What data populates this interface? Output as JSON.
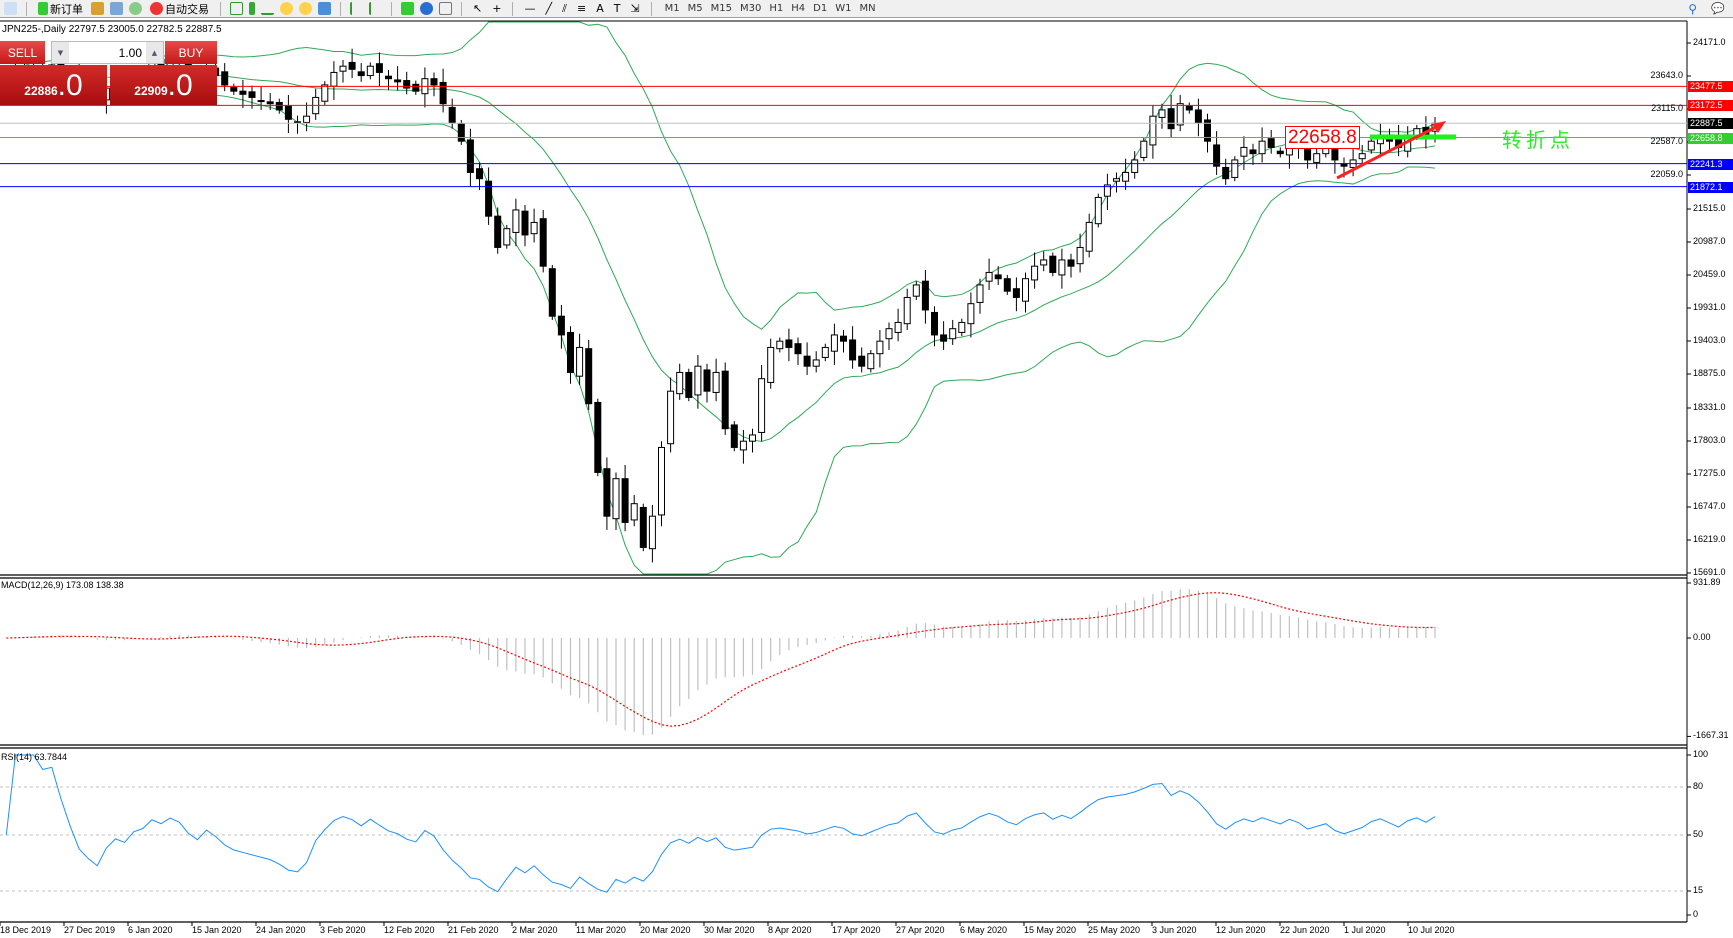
{
  "toolbar": {
    "new_order": "新订单",
    "auto_trading": "自动交易",
    "periods": [
      "M1",
      "M5",
      "M15",
      "M30",
      "H1",
      "H4",
      "D1",
      "W1",
      "MN"
    ]
  },
  "chart": {
    "title": "JPN225-,Daily  22797.5 23005.0 22782.5 22887.5",
    "trade_panel": {
      "sell": "SELL",
      "buy": "BUY",
      "lot": "1.00",
      "sell_small": "22886",
      "sell_big": ".0",
      "buy_small": "22909",
      "buy_big": ".0"
    },
    "price_axis": [
      "24171.0",
      "23643.0",
      "23115.0",
      "22587.0",
      "22059.0",
      "21515.0",
      "20987.0",
      "20459.0",
      "19931.0",
      "19403.0",
      "18875.0",
      "18331.0",
      "17803.0",
      "17275.0",
      "16747.0",
      "16219.0",
      "15691.0"
    ],
    "levels": [
      {
        "price": 23477.5,
        "label": "23477.5",
        "color": "#ff0000"
      },
      {
        "price": 23172.5,
        "label": "23172.5",
        "color": "#ff0000"
      },
      {
        "price": 22887.5,
        "label": "22887.5",
        "color": "#000000",
        "line": "#c0c0c0"
      },
      {
        "price": 22658.8,
        "label": "22658.8",
        "color": "#33cc33",
        "line": "#33cc33"
      },
      {
        "price": 22241.3,
        "label": "22241.3",
        "color": "#0000ff"
      },
      {
        "price": 21872.1,
        "label": "21872.1",
        "color": "#0000ff"
      }
    ],
    "annotation_price": "22658.8",
    "annotation_text": "转折点",
    "closes": [
      23600,
      23700,
      23750,
      23800,
      23780,
      23820,
      23750,
      23650,
      23500,
      23400,
      23300,
      23450,
      23550,
      23500,
      23650,
      23700,
      23850,
      23800,
      23900,
      23850,
      23700,
      23600,
      23750,
      23650,
      23500,
      23400,
      23350,
      23300,
      23250,
      23200,
      23100,
      22950,
      22900,
      23000,
      23300,
      23500,
      23700,
      23800,
      23750,
      23650,
      23800,
      23700,
      23600,
      23550,
      23450,
      23400,
      23600,
      23500,
      23200,
      22900,
      22600,
      22100,
      22000,
      21400,
      20900,
      21200,
      21500,
      21100,
      21300,
      20600,
      19800,
      19500,
      18900,
      19300,
      18400,
      17300,
      16600,
      17200,
      16500,
      16800,
      16100,
      16600,
      17700,
      18600,
      18900,
      18500,
      19000,
      18600,
      18900,
      18000,
      17700,
      17800,
      17900,
      18800,
      19300,
      19400,
      19300,
      19200,
      19000,
      19100,
      19300,
      19500,
      19400,
      19100,
      19000,
      19200,
      19400,
      19600,
      19700,
      20100,
      20300,
      19900,
      19500,
      19400,
      19600,
      19700,
      20000,
      20300,
      20500,
      20400,
      20200,
      20100,
      20400,
      20600,
      20700,
      20500,
      20700,
      20600,
      20900,
      21300,
      21700,
      21900,
      22000,
      22100,
      22300,
      22600,
      23000,
      23100,
      22800,
      23200,
      23100,
      22900,
      22600,
      22200,
      22000,
      22300,
      22500,
      22400,
      22600,
      22500,
      22400,
      22600,
      22500,
      22300,
      22400,
      22500,
      22300,
      22200,
      22300,
      22400,
      22600,
      22700,
      22600,
      22500,
      22700,
      22800,
      22700,
      22887.5
    ],
    "dates": [
      "18 Dec 2019",
      "27 Dec 2019",
      "6 Jan 2020",
      "15 Jan 2020",
      "24 Jan 2020",
      "3 Feb 2020",
      "12 Feb 2020",
      "21 Feb 2020",
      "2 Mar 2020",
      "11 Mar 2020",
      "20 Mar 2020",
      "30 Mar 2020",
      "8 Apr 2020",
      "17 Apr 2020",
      "27 Apr 2020",
      "6 May 2020",
      "15 May 2020",
      "25 May 2020",
      "3 Jun 2020",
      "12 Jun 2020",
      "22 Jun 2020",
      "1 Jul 2020",
      "10 Jul 2020"
    ]
  },
  "macd": {
    "label": "MACD(12,26,9) 173.08 138.38",
    "axis": [
      "931.89",
      "0.00",
      "-1667.31"
    ]
  },
  "rsi": {
    "label": "RSI(14) 63.7844",
    "axis": [
      "100",
      "80",
      "50",
      "15",
      "0"
    ]
  },
  "colors": {
    "bands": "#2eaa55",
    "signal": "#ff0000",
    "histogram": "#c0c0c0",
    "rsi": "#1e90ff"
  }
}
